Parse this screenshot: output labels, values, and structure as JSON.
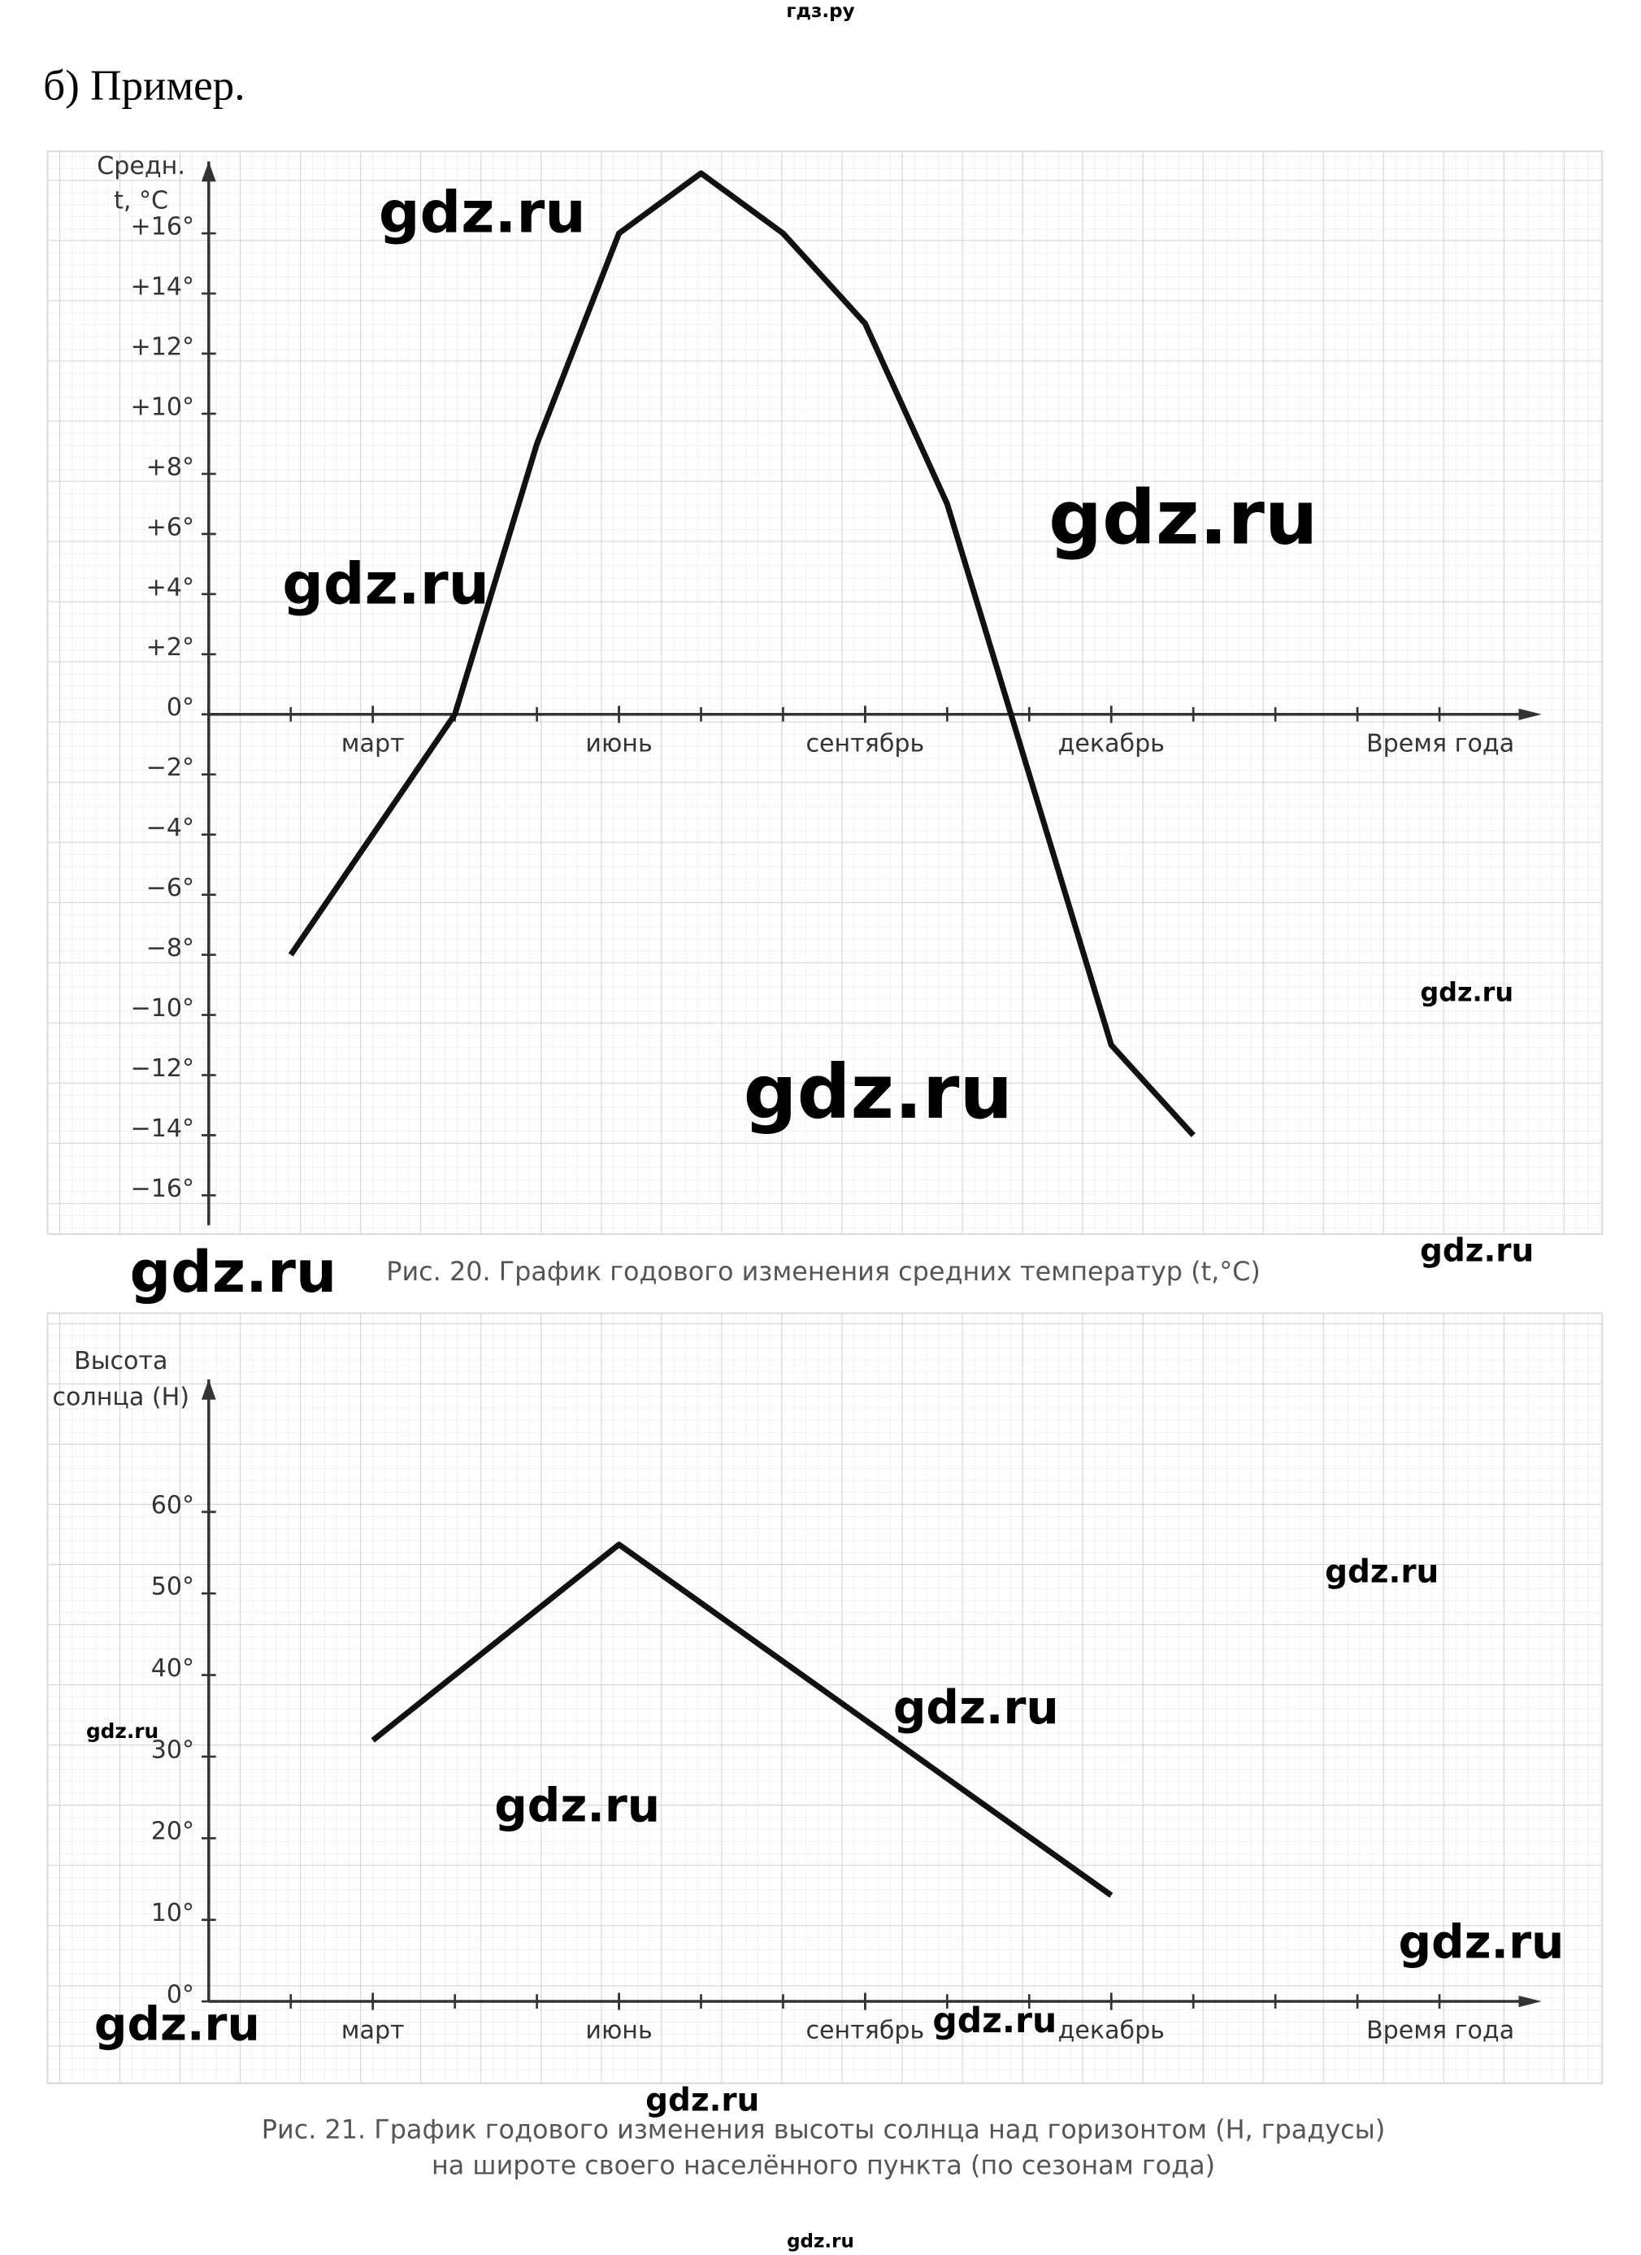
{
  "header": "гдз.ру",
  "heading": "б) Пример.",
  "footer": "gdz.ru",
  "watermarks": [
    "gdz.ru",
    "gdz.ru",
    "gdz.ru",
    "gdz.ru",
    "gdz.ru",
    "gdz.ru",
    "gdz.ru",
    "gdz.ru",
    "gdz.ru",
    "gdz.ru",
    "gdz.ru",
    "gdz.ru",
    "gdz.ru",
    "gdz.ru",
    "gdz.ru"
  ],
  "chart_data": [
    {
      "type": "line",
      "caption": [
        "Рис. 20. График годового изменения средних температур (t,°C)"
      ],
      "y_label": [
        "Средн.",
        "t, °C"
      ],
      "x_label": "Время года",
      "x": [
        2,
        3,
        4,
        5,
        6,
        7,
        8,
        9,
        10,
        11,
        12,
        13
      ],
      "series": [
        {
          "color": "#111111",
          "values": [
            -8,
            -4,
            0,
            9,
            16,
            18,
            16,
            13,
            7,
            -2,
            -11,
            -14
          ]
        }
      ],
      "xlim": [
        1,
        17
      ],
      "xticks": [
        {
          "value": 3,
          "label": "март"
        },
        {
          "value": 6,
          "label": "июнь"
        },
        {
          "value": 9,
          "label": "сентябрь"
        },
        {
          "value": 12,
          "label": "декабрь"
        }
      ],
      "ylim": [
        -17,
        18.2
      ],
      "yticks": [
        {
          "value": 16,
          "label": "+16°"
        },
        {
          "value": 14,
          "label": "+14°"
        },
        {
          "value": 12,
          "label": "+12°"
        },
        {
          "value": 10,
          "label": "+10°"
        },
        {
          "value": 8,
          "label": "+8°"
        },
        {
          "value": 6,
          "label": "+6°"
        },
        {
          "value": 4,
          "label": "+4°"
        },
        {
          "value": 2,
          "label": "+2°"
        },
        {
          "value": 0,
          "label": "0°"
        },
        {
          "value": -2,
          "label": "−2°"
        },
        {
          "value": -4,
          "label": "−4°"
        },
        {
          "value": -6,
          "label": "−6°"
        },
        {
          "value": -8,
          "label": "−8°"
        },
        {
          "value": -10,
          "label": "−10°"
        },
        {
          "value": -12,
          "label": "−12°"
        },
        {
          "value": -14,
          "label": "−14°"
        },
        {
          "value": -16,
          "label": "−16°"
        }
      ]
    },
    {
      "type": "line",
      "caption": [
        "Рис. 21. График годового изменения высоты солнца над горизонтом (H, градусы)",
        "на широте своего населённого пункта (по сезонам года)"
      ],
      "y_label": [
        "Высота",
        "солнца (H)"
      ],
      "x_label": "Время года",
      "x": [
        3,
        6,
        12
      ],
      "series": [
        {
          "color": "#111111",
          "values": [
            32,
            56,
            13
          ]
        }
      ],
      "xlim": [
        1,
        17
      ],
      "xticks": [
        {
          "value": 3,
          "label": "март"
        },
        {
          "value": 6,
          "label": "июнь"
        },
        {
          "value": 9,
          "label": "сентябрь"
        },
        {
          "value": 12,
          "label": "декабрь"
        }
      ],
      "ylim": [
        0,
        75
      ],
      "yticks": [
        {
          "value": 0,
          "label": "0°"
        },
        {
          "value": 10,
          "label": "10°"
        },
        {
          "value": 20,
          "label": "20°"
        },
        {
          "value": 30,
          "label": "30°"
        },
        {
          "value": 40,
          "label": "40°"
        },
        {
          "value": 50,
          "label": "50°"
        },
        {
          "value": 60,
          "label": "60°"
        }
      ]
    }
  ]
}
